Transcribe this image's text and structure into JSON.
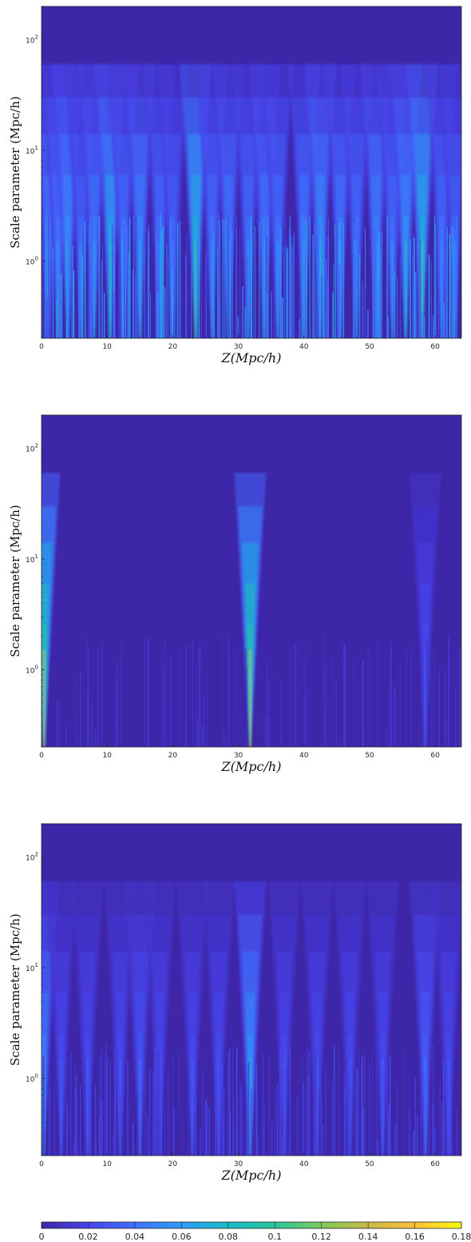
{
  "chart_data": [
    {
      "type": "heatmap",
      "title": "",
      "xlabel": "Z(Mpc/h)",
      "ylabel": "Scale parameter (Mpc/h)",
      "xlim": [
        0,
        64
      ],
      "ylim": [
        0.2,
        200
      ],
      "yscale": "log",
      "xticks": [
        0,
        10,
        20,
        30,
        40,
        50,
        60
      ],
      "yticks": [
        1,
        10,
        100
      ],
      "ytick_labels": [
        "10^0",
        "10^1",
        "10^2"
      ],
      "features": [
        {
          "x": 1,
          "peak": 0.05
        },
        {
          "x": 2.5,
          "peak": 0.045
        },
        {
          "x": 4,
          "peak": 0.06
        },
        {
          "x": 6,
          "peak": 0.04
        },
        {
          "x": 8,
          "peak": 0.05
        },
        {
          "x": 10.5,
          "peak": 0.07
        },
        {
          "x": 12.5,
          "peak": 0.045
        },
        {
          "x": 15,
          "peak": 0.055
        },
        {
          "x": 18,
          "peak": 0.045
        },
        {
          "x": 20,
          "peak": 0.04
        },
        {
          "x": 23.5,
          "peak": 0.08
        },
        {
          "x": 26,
          "peak": 0.045
        },
        {
          "x": 28.5,
          "peak": 0.05
        },
        {
          "x": 31.5,
          "peak": 0.045
        },
        {
          "x": 34,
          "peak": 0.05
        },
        {
          "x": 36,
          "peak": 0.045
        },
        {
          "x": 40,
          "peak": 0.05
        },
        {
          "x": 42.5,
          "peak": 0.06
        },
        {
          "x": 45.5,
          "peak": 0.05
        },
        {
          "x": 48,
          "peak": 0.045
        },
        {
          "x": 51,
          "peak": 0.055
        },
        {
          "x": 53.5,
          "peak": 0.045
        },
        {
          "x": 55.5,
          "peak": 0.06
        },
        {
          "x": 58,
          "peak": 0.08
        },
        {
          "x": 61,
          "peak": 0.045
        },
        {
          "x": 63,
          "peak": 0.04
        }
      ]
    },
    {
      "type": "heatmap",
      "title": "",
      "xlabel": "Z(Mpc/h)",
      "ylabel": "Scale parameter (Mpc/h)",
      "xlim": [
        0,
        64
      ],
      "ylim": [
        0.2,
        200
      ],
      "yscale": "log",
      "xticks": [
        0,
        10,
        20,
        30,
        40,
        50,
        60
      ],
      "yticks": [
        1,
        10,
        100
      ],
      "ytick_labels": [
        "10^0",
        "10^1",
        "10^2"
      ],
      "features": [
        {
          "x": 0.4,
          "peak": 0.1
        },
        {
          "x": 31.8,
          "peak": 0.1
        },
        {
          "x": 58.5,
          "peak": 0.025
        }
      ]
    },
    {
      "type": "heatmap",
      "title": "",
      "xlabel": "Z(Mpc/h)",
      "ylabel": "Scale parameter (Mpc/h)",
      "xlim": [
        0,
        64
      ],
      "ylim": [
        0.2,
        200
      ],
      "yscale": "log",
      "xticks": [
        0,
        10,
        20,
        30,
        40,
        50,
        60
      ],
      "yticks": [
        1,
        10,
        100
      ],
      "ytick_labels": [
        "10^0",
        "10^1",
        "10^2"
      ],
      "features": [
        {
          "x": 0.3,
          "peak": 0.05
        },
        {
          "x": 3,
          "peak": 0.025
        },
        {
          "x": 7,
          "peak": 0.025
        },
        {
          "x": 12,
          "peak": 0.025
        },
        {
          "x": 15,
          "peak": 0.03
        },
        {
          "x": 18,
          "peak": 0.025
        },
        {
          "x": 23,
          "peak": 0.025
        },
        {
          "x": 27,
          "peak": 0.025
        },
        {
          "x": 31.8,
          "peak": 0.06
        },
        {
          "x": 37,
          "peak": 0.025
        },
        {
          "x": 42,
          "peak": 0.025
        },
        {
          "x": 47,
          "peak": 0.025
        },
        {
          "x": 52,
          "peak": 0.025
        },
        {
          "x": 58.5,
          "peak": 0.035
        },
        {
          "x": 62,
          "peak": 0.025
        }
      ]
    }
  ],
  "colorbar": {
    "min": 0,
    "max": 0.18,
    "ticks": [
      0,
      0.02,
      0.04,
      0.06,
      0.08,
      0.1,
      0.12,
      0.14,
      0.16,
      0.18
    ],
    "tick_labels": [
      "0",
      "0.02",
      "0.04",
      "0.06",
      "0.08",
      "0.1",
      "0.12",
      "0.14",
      "0.16",
      "0.18"
    ],
    "colormap": "parula",
    "colors": [
      "#3e26a8",
      "#4743ec",
      "#4070fe",
      "#2c9df5",
      "#16baca",
      "#29c69c",
      "#7cc95b",
      "#c8bc42",
      "#fcbf3a",
      "#f8fa0d"
    ]
  }
}
